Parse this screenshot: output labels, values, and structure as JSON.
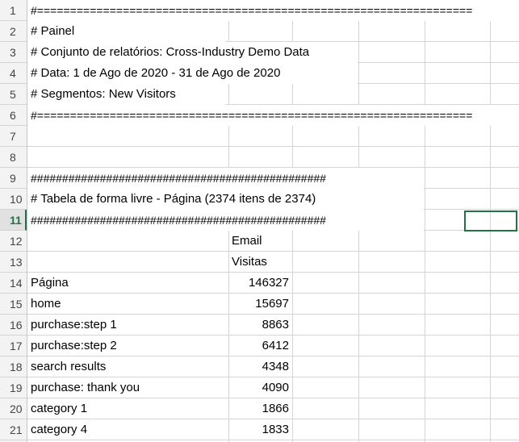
{
  "row_numbers": [
    "1",
    "2",
    "3",
    "4",
    "5",
    "6",
    "7",
    "8",
    "9",
    "10",
    "11",
    "12",
    "13",
    "14",
    "15",
    "16",
    "17",
    "18",
    "19",
    "20",
    "21"
  ],
  "rows": {
    "r1": "#==================================================================",
    "r2": "# Painel",
    "r3": "# Conjunto de relatórios: Cross-Industry Demo Data",
    "r4": "# Data: 1 de Ago de 2020 - 31 de Ago de 2020",
    "r5": "# Segmentos: New Visitors",
    "r6": "#==================================================================",
    "r9": "###############################################",
    "r10": "# Tabela de forma livre - Página (2374 itens de 2374)",
    "r11": "###############################################"
  },
  "table": {
    "header_email": "Email",
    "header_visits": "Visitas",
    "data": [
      {
        "label": "Página",
        "value": "146327"
      },
      {
        "label": "home",
        "value": "15697"
      },
      {
        "label": "purchase:step 1",
        "value": "8863"
      },
      {
        "label": "purchase:step 2",
        "value": "6412"
      },
      {
        "label": "search results",
        "value": "4348"
      },
      {
        "label": "purchase: thank you",
        "value": "4090"
      },
      {
        "label": "category 1",
        "value": "1866"
      },
      {
        "label": "category 4",
        "value": "1833"
      }
    ]
  },
  "colors": {
    "accent": "#217346",
    "gridline": "#d4d4d4",
    "header_bg": "#f3f3f3"
  }
}
